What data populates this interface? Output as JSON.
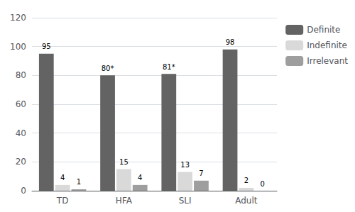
{
  "chart_data": {
    "type": "bar",
    "categories": [
      "TD",
      "HFA",
      "SLI",
      "Adult"
    ],
    "series": [
      {
        "name": "Definite",
        "color": "#636363",
        "values": [
          95,
          80,
          81,
          98
        ],
        "value_labels": [
          "95",
          "80*",
          "81*",
          "98"
        ]
      },
      {
        "name": "Indefinite",
        "color": "#d9d9d9",
        "values": [
          4,
          15,
          13,
          2
        ],
        "value_labels": [
          "4",
          "15",
          "13",
          "2"
        ]
      },
      {
        "name": "Irrelevant",
        "color": "#9e9e9e",
        "values": [
          1,
          4,
          7,
          0
        ],
        "value_labels": [
          "1",
          "4",
          "7",
          "0"
        ]
      }
    ],
    "ylim": [
      0,
      120
    ],
    "yticks": [
      0,
      20,
      40,
      60,
      80,
      100,
      120
    ],
    "grid": true,
    "legend": "right",
    "data_labels": true
  }
}
